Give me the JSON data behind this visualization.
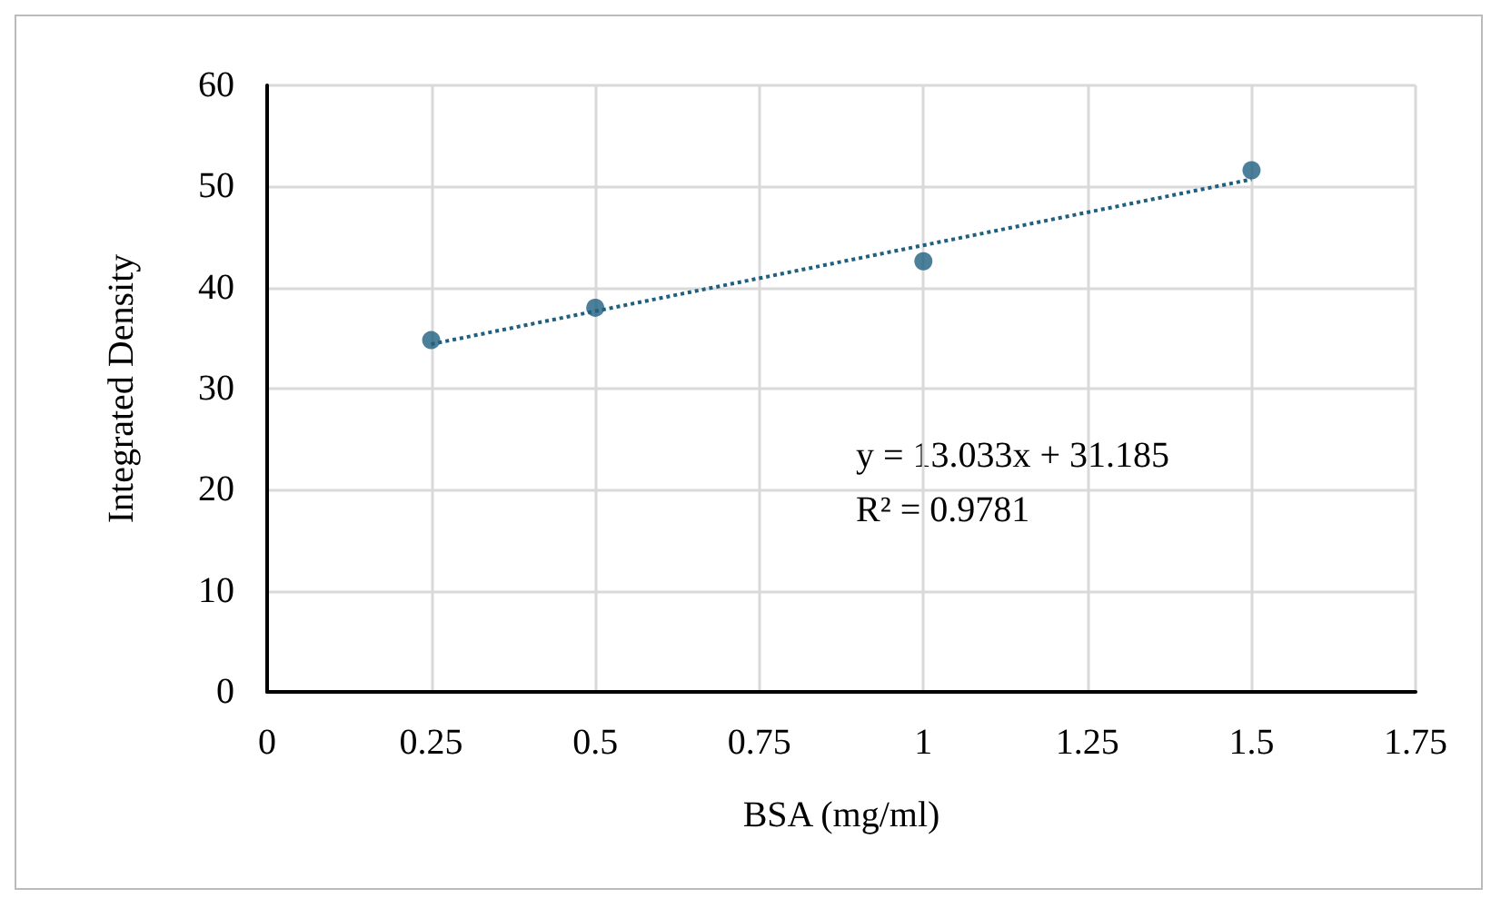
{
  "chart_data": {
    "type": "scatter",
    "xlabel": "BSA (mg/ml)",
    "ylabel": "Integrated Density",
    "x": [
      0.25,
      0.5,
      1,
      1.5
    ],
    "series": [
      {
        "color": "#1f5f7f",
        "values": [
          34.8,
          38,
          42.6,
          51.6
        ],
        "marker": "circle"
      },
      {
        "type": "line",
        "color": "#1f5f7f",
        "x": [
          0.25,
          1.5
        ],
        "values": [
          34.4,
          50.7
        ],
        "line_style": "dotted",
        "marker": "none"
      }
    ],
    "xlim": [
      0,
      1.75
    ],
    "xticks": [
      0,
      0.25,
      0.5,
      0.75,
      1,
      1.25,
      1.5,
      1.75
    ],
    "ylim": [
      0,
      60
    ],
    "yticks": [
      0,
      10,
      20,
      30,
      40,
      50,
      60
    ],
    "grid": true,
    "annotations": [
      "y = 13.033x + 31.185",
      "R² = 0.9781"
    ]
  }
}
